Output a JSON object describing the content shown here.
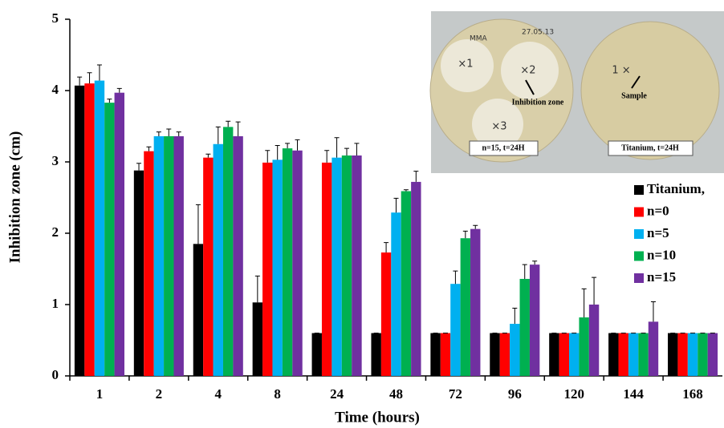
{
  "chart_data": {
    "type": "bar",
    "x_label": "Time (hours)",
    "y_label": "Inhibition zone (cm)",
    "categories": [
      "1",
      "2",
      "4",
      "8",
      "24",
      "48",
      "72",
      "96",
      "120",
      "144",
      "168"
    ],
    "series": [
      {
        "name": "Titanium,",
        "color": "#000000",
        "values": [
          4.07,
          2.88,
          1.85,
          1.03,
          0.6,
          0.6,
          0.6,
          0.6,
          0.6,
          0.6,
          0.6
        ],
        "errors": [
          0.12,
          0.1,
          0.55,
          0.37,
          0,
          0,
          0,
          0,
          0,
          0,
          0
        ]
      },
      {
        "name": "n=0",
        "color": "#ff0000",
        "values": [
          4.1,
          3.15,
          3.06,
          2.99,
          2.99,
          1.73,
          0.6,
          0.6,
          0.6,
          0.6,
          0.6
        ],
        "errors": [
          0.15,
          0.06,
          0.05,
          0.17,
          0.17,
          0.14,
          0,
          0,
          0,
          0,
          0
        ]
      },
      {
        "name": "n=5",
        "color": "#00b0f0",
        "values": [
          4.14,
          3.36,
          3.25,
          3.03,
          3.06,
          2.29,
          1.29,
          0.73,
          0.6,
          0.6,
          0.6
        ],
        "errors": [
          0.22,
          0.06,
          0.24,
          0.2,
          0.28,
          0.2,
          0.18,
          0.22,
          0,
          0,
          0
        ]
      },
      {
        "name": "n=10",
        "color": "#00b050",
        "values": [
          3.83,
          3.36,
          3.49,
          3.19,
          3.09,
          2.59,
          1.93,
          1.36,
          0.82,
          0.6,
          0.6
        ],
        "errors": [
          0.05,
          0.1,
          0.08,
          0.07,
          0.1,
          0.02,
          0.1,
          0.2,
          0.4,
          0,
          0
        ]
      },
      {
        "name": "n=15",
        "color": "#7030a0",
        "values": [
          3.97,
          3.36,
          3.36,
          3.16,
          3.09,
          2.72,
          2.06,
          1.56,
          1.0,
          0.76,
          0.6
        ],
        "errors": [
          0.06,
          0.06,
          0.2,
          0.15,
          0.17,
          0.15,
          0.05,
          0.05,
          0.38,
          0.28,
          0
        ]
      }
    ],
    "ylim": [
      0,
      5
    ],
    "yticks": [
      0,
      1,
      2,
      3,
      4,
      5
    ],
    "grid": false,
    "legend": "right",
    "annotations": [
      "Inhibition zone",
      "Sample",
      "n=15, t=24H",
      "Titanium, t=24H",
      "MMA",
      "27.05.13",
      "×2",
      "×3",
      "1 ×",
      "×1"
    ]
  }
}
